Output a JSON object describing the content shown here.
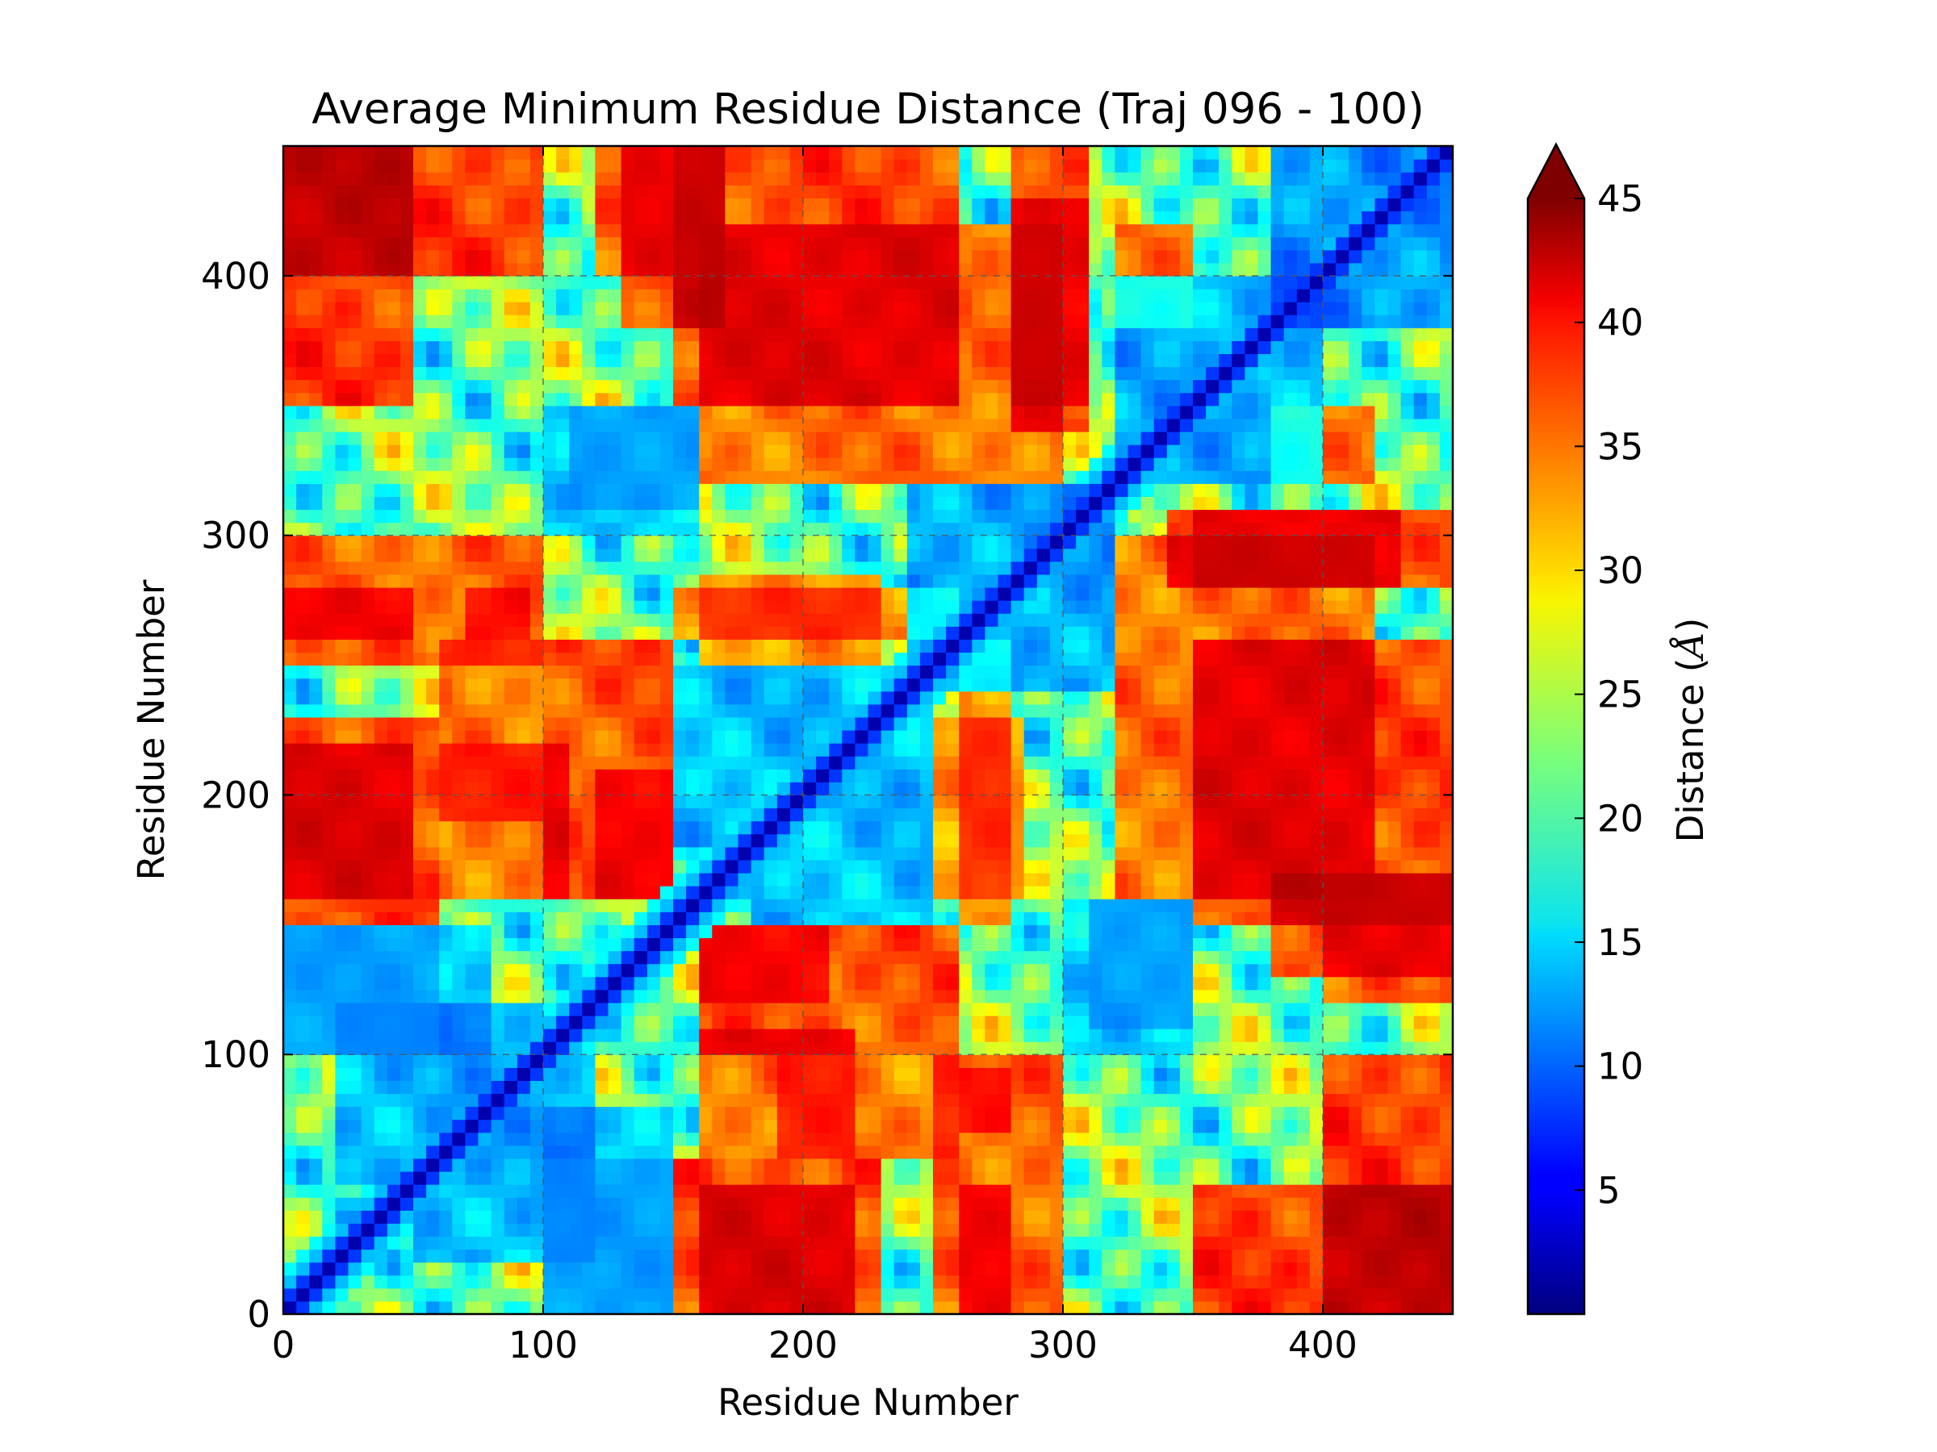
{
  "chart_data": {
    "type": "heatmap",
    "title": "Average Minimum Residue Distance (Traj 096 - 100)",
    "xlabel": "Residue Number",
    "ylabel": "Residue Number",
    "xlim": [
      0,
      450
    ],
    "ylim": [
      0,
      450
    ],
    "x_ticks": [
      0,
      100,
      200,
      300,
      400
    ],
    "y_ticks": [
      0,
      100,
      200,
      300,
      400
    ],
    "grid": true,
    "colormap": "jet",
    "colorbar": {
      "label": "Distance (Å)",
      "label_main": "Distance (",
      "label_unit": "Å",
      "label_end": ")",
      "range": [
        0,
        45
      ],
      "ticks": [
        5,
        10,
        15,
        20,
        25,
        30,
        35,
        40,
        45
      ],
      "extend": "max"
    },
    "symmetric": true,
    "diagonal_value": 2,
    "background_value": 22,
    "grid_resolution": 90,
    "features": [
      {
        "x": [
          0,
          50
        ],
        "y": [
          350,
          450
        ],
        "value": 45
      },
      {
        "x": [
          130,
          170
        ],
        "y": [
          380,
          450
        ],
        "value": 44
      },
      {
        "x": [
          0,
          50
        ],
        "y": [
          160,
          220
        ],
        "value": 42
      },
      {
        "x": [
          60,
          110
        ],
        "y": [
          160,
          220
        ],
        "value": 41
      },
      {
        "x": [
          120,
          150
        ],
        "y": [
          160,
          210
        ],
        "value": 40
      },
      {
        "x": [
          0,
          50
        ],
        "y": [
          260,
          280
        ],
        "value": 42
      },
      {
        "x": [
          70,
          95
        ],
        "y": [
          260,
          280
        ],
        "value": 40
      },
      {
        "x": [
          160,
          230
        ],
        "y": [
          250,
          285
        ],
        "value": 38
      },
      {
        "x": [
          160,
          260
        ],
        "y": [
          100,
          150
        ],
        "value": 43
      },
      {
        "x": [
          150,
          230
        ],
        "y": [
          0,
          60
        ],
        "value": 44
      },
      {
        "x": [
          250,
          300
        ],
        "y": [
          0,
          100
        ],
        "value": 42
      },
      {
        "x": [
          280,
          310
        ],
        "y": [
          350,
          450
        ],
        "value": 42
      },
      {
        "x": [
          160,
          300
        ],
        "y": [
          320,
          420
        ],
        "value": 41
      },
      {
        "x": [
          260,
          280
        ],
        "y": [
          150,
          260
        ],
        "value": 40
      },
      {
        "x": [
          190,
          260
        ],
        "y": [
          60,
          100
        ],
        "value": 40
      },
      {
        "x": [
          350,
          450
        ],
        "y": [
          150,
          260
        ],
        "value": 44
      },
      {
        "x": [
          340,
          430
        ],
        "y": [
          280,
          310
        ],
        "value": 43
      },
      {
        "x": [
          400,
          450
        ],
        "y": [
          0,
          100
        ],
        "value": 45
      },
      {
        "x": [
          400,
          450
        ],
        "y": [
          120,
          170
        ],
        "value": 42
      },
      {
        "x": [
          380,
          420
        ],
        "y": [
          320,
          350
        ],
        "value": 40
      },
      {
        "x": [
          0,
          80
        ],
        "y": [
          100,
          150
        ],
        "value": 10
      },
      {
        "x": [
          50,
          120
        ],
        "y": [
          20,
          100
        ],
        "value": 9
      },
      {
        "x": [
          100,
          150
        ],
        "y": [
          0,
          60
        ],
        "value": 12
      },
      {
        "x": [
          150,
          250
        ],
        "y": [
          180,
          250
        ],
        "value": 10
      },
      {
        "x": [
          250,
          320
        ],
        "y": [
          240,
          320
        ],
        "value": 8
      },
      {
        "x": [
          320,
          400
        ],
        "y": [
          320,
          400
        ],
        "value": 9
      },
      {
        "x": [
          380,
          450
        ],
        "y": [
          380,
          450
        ],
        "value": 7
      },
      {
        "x": [
          300,
          350
        ],
        "y": [
          100,
          160
        ],
        "value": 12
      },
      {
        "x": [
          110,
          160
        ],
        "y": [
          310,
          350
        ],
        "value": 11
      }
    ]
  }
}
